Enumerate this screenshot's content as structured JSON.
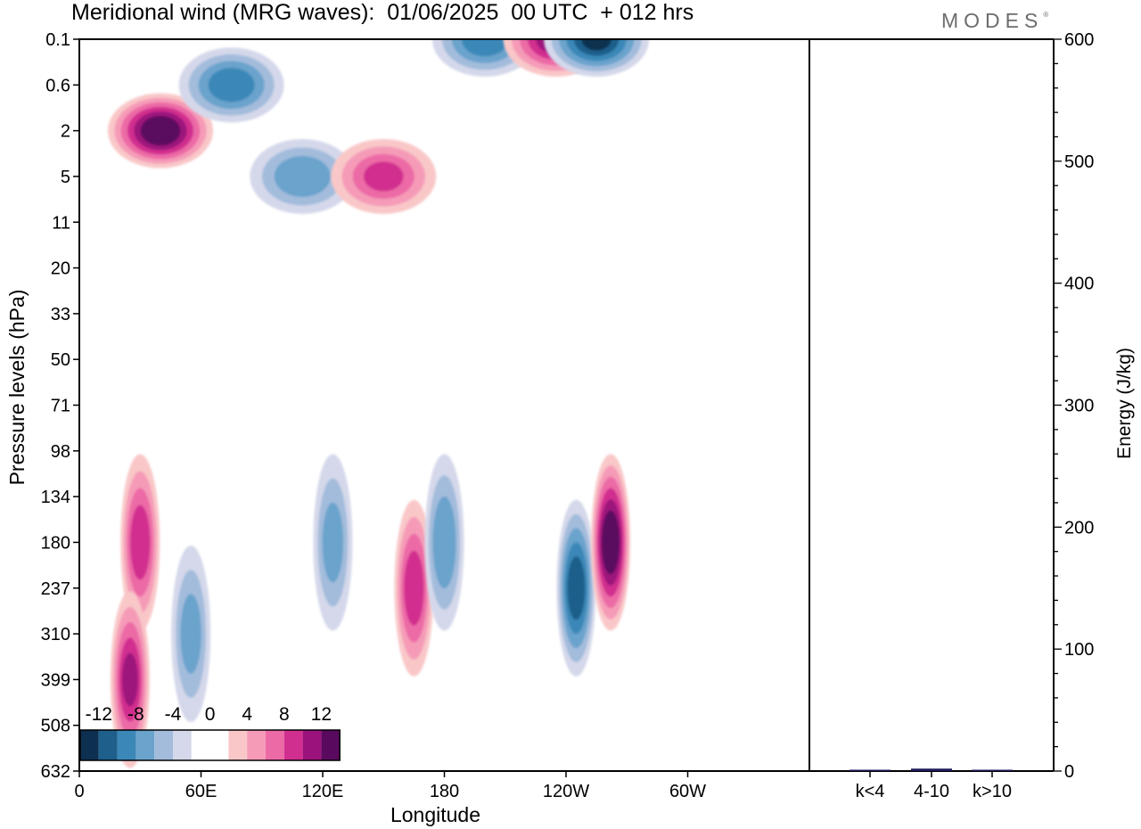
{
  "header": {
    "title": "Meridional wind (MRG waves):  01/06/2025  00 UTC  + 012 hrs",
    "logo": "MODES"
  },
  "chart_data": [
    {
      "type": "heatmap",
      "title": "Meridional wind (MRG waves):  01/06/2025  00 UTC  + 012 hrs",
      "xlabel": "Longitude",
      "ylabel": "Pressure levels (hPa)",
      "x_ticks": [
        "0",
        "60E",
        "120E",
        "180",
        "120W",
        "60W"
      ],
      "y_ticks": [
        "0.1",
        "0.6",
        "2",
        "5",
        "11",
        "20",
        "33",
        "50",
        "71",
        "98",
        "134",
        "180",
        "237",
        "310",
        "399",
        "508",
        "632"
      ],
      "colorbar": {
        "labels": [
          "-12",
          "-8",
          "-4",
          "0",
          "4",
          "8",
          "12"
        ],
        "colors": [
          "#0d3050",
          "#1f5f8b",
          "#3b88b8",
          "#6aa3cc",
          "#a3bcdc",
          "#d4d8ea",
          "#ffffff",
          "#ffffff",
          "#f9c7c8",
          "#f59bb8",
          "#ec6aa6",
          "#d12f8f",
          "#9c127c",
          "#5a0a5e"
        ]
      },
      "features": [
        {
          "lon": 40,
          "level": "2",
          "value": 14
        },
        {
          "lon": 75,
          "level": "0.6",
          "value": -9
        },
        {
          "lon": 110,
          "level": "5",
          "value": -7
        },
        {
          "lon": 150,
          "level": "5",
          "value": 8
        },
        {
          "lon": 200,
          "level": "0.1",
          "value": -9
        },
        {
          "lon": 235,
          "level": "0.1",
          "value": 11
        },
        {
          "lon": 255,
          "level": "0.1",
          "value": -12
        },
        {
          "lon": 30,
          "level": "180",
          "value": 9
        },
        {
          "lon": 25,
          "level": "399",
          "value": 10
        },
        {
          "lon": 55,
          "level": "310",
          "value": -6
        },
        {
          "lon": 125,
          "level": "180",
          "value": -6
        },
        {
          "lon": 165,
          "level": "237",
          "value": 9
        },
        {
          "lon": 180,
          "level": "180",
          "value": -7
        },
        {
          "lon": 245,
          "level": "237",
          "value": -11
        },
        {
          "lon": 262,
          "level": "180",
          "value": 14
        }
      ]
    },
    {
      "type": "bar",
      "ylabel": "Energy (J/kg)",
      "categories": [
        "k<4",
        "4-10",
        "k>10"
      ],
      "values": [
        0.5,
        2,
        0.5
      ],
      "ylim": [
        0,
        600
      ],
      "y_ticks": [
        "0",
        "100",
        "200",
        "300",
        "400",
        "500",
        "600"
      ]
    }
  ]
}
